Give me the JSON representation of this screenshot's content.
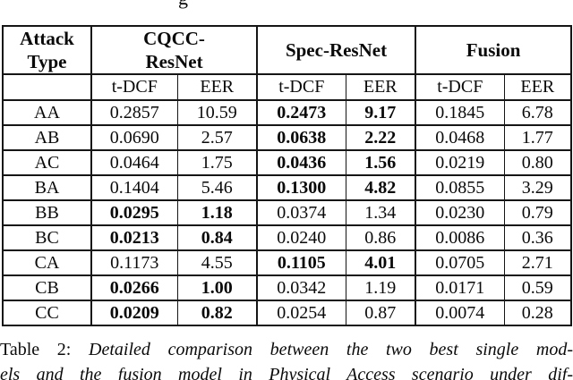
{
  "page": {
    "clipped_text_top": "g"
  },
  "table": {
    "col_groups": [
      {
        "label": "Attack\nType"
      },
      {
        "label": "CQCC-\nResNet"
      },
      {
        "label": "Spec-ResNet"
      },
      {
        "label": "Fusion"
      }
    ],
    "sub_headers": [
      "t-DCF",
      "EER",
      "t-DCF",
      "EER",
      "t-DCF",
      "EER"
    ],
    "rows": [
      {
        "attack_type": "AA",
        "values": [
          "0.2857",
          "10.59",
          "0.2473",
          "9.17",
          "0.1845",
          "6.78"
        ],
        "bold": [
          false,
          false,
          true,
          true,
          false,
          false
        ]
      },
      {
        "attack_type": "AB",
        "values": [
          "0.0690",
          "2.57",
          "0.0638",
          "2.22",
          "0.0468",
          "1.77"
        ],
        "bold": [
          false,
          false,
          true,
          true,
          false,
          false
        ]
      },
      {
        "attack_type": "AC",
        "values": [
          "0.0464",
          "1.75",
          "0.0436",
          "1.56",
          "0.0219",
          "0.80"
        ],
        "bold": [
          false,
          false,
          true,
          true,
          false,
          false
        ]
      },
      {
        "attack_type": "BA",
        "values": [
          "0.1404",
          "5.46",
          "0.1300",
          "4.82",
          "0.0855",
          "3.29"
        ],
        "bold": [
          false,
          false,
          true,
          true,
          false,
          false
        ]
      },
      {
        "attack_type": "BB",
        "values": [
          "0.0295",
          "1.18",
          "0.0374",
          "1.34",
          "0.0230",
          "0.79"
        ],
        "bold": [
          true,
          true,
          false,
          false,
          false,
          false
        ]
      },
      {
        "attack_type": "BC",
        "values": [
          "0.0213",
          "0.84",
          "0.0240",
          "0.86",
          "0.0086",
          "0.36"
        ],
        "bold": [
          true,
          true,
          false,
          false,
          false,
          false
        ]
      },
      {
        "attack_type": "CA",
        "values": [
          "0.1173",
          "4.55",
          "0.1105",
          "4.01",
          "0.0705",
          "2.71"
        ],
        "bold": [
          false,
          false,
          true,
          true,
          false,
          false
        ]
      },
      {
        "attack_type": "CB",
        "values": [
          "0.0266",
          "1.00",
          "0.0342",
          "1.19",
          "0.0171",
          "0.59"
        ],
        "bold": [
          true,
          true,
          false,
          false,
          false,
          false
        ]
      },
      {
        "attack_type": "CC",
        "values": [
          "0.0209",
          "0.82",
          "0.0254",
          "0.87",
          "0.0074",
          "0.28"
        ],
        "bold": [
          true,
          true,
          false,
          false,
          false,
          false
        ]
      }
    ]
  },
  "caption": {
    "label": "Table 2:",
    "line1_italic": "Detailed comparison between the two best single mod-",
    "line2_italic": "els and the fusion model in Physical Access scenario under dif-"
  }
}
